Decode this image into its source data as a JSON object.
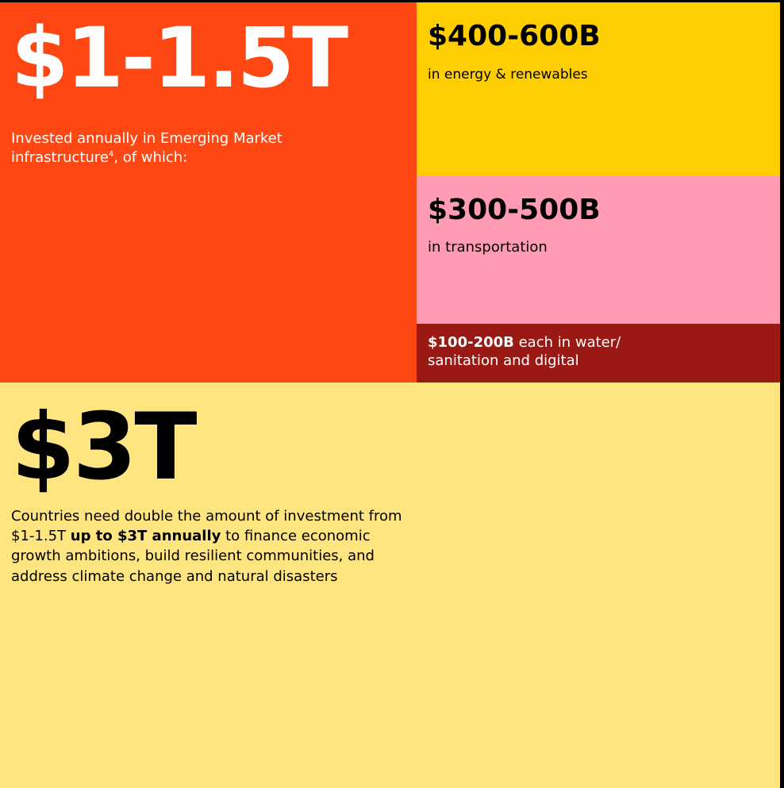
{
  "main": {
    "figure": "$1-1.5T",
    "description": "Invested annually in Emerging Market infrastructure",
    "footnote": "4",
    "description_end": ", of which:"
  },
  "segments": [
    {
      "figure": "$400-600B",
      "label": "in energy & renewables"
    },
    {
      "figure": "$300-500B",
      "label": "in transportation"
    },
    {
      "figure": "$100-200B",
      "label": " each in water/ sanitation and digital"
    }
  ],
  "need": {
    "figure": "$3T",
    "text_before": "Countries need double the amount of investment from $1-1.5T ",
    "text_bold": "up to $3T annually",
    "text_after": " to finance economic growth ambitions, build resilient communities, and address climate change and natural disasters"
  }
}
